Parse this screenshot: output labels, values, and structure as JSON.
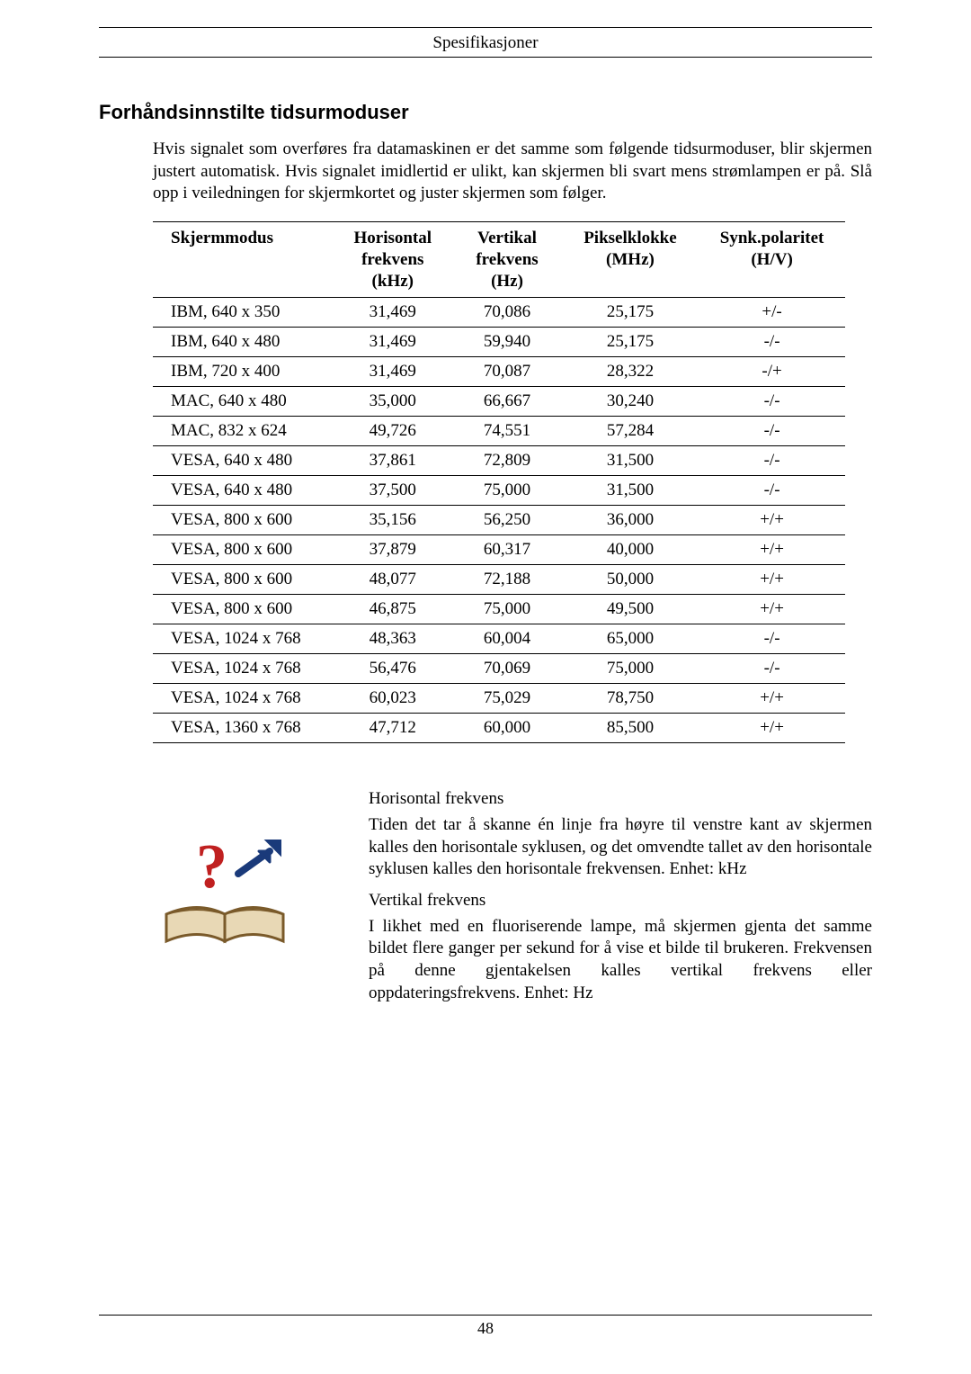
{
  "header": "Spesifikasjoner",
  "section_heading": "Forhåndsinnstilte tidsurmoduser",
  "intro": "Hvis signalet som overføres fra datamaskinen er det samme som følgende tidsurmoduser, blir skjermen justert automatisk. Hvis signalet imidlertid er ulikt, kan skjermen bli svart mens strømlampen er på. Slå opp i veiledningen for skjermkortet og juster skjermen som følger.",
  "table": {
    "columns": [
      "Skjermmodus",
      "Horisontal frekvens (kHz)",
      "Vertikal frekvens (Hz)",
      "Pikselklokke (MHz)",
      "Synk.polaritet (H/V)"
    ],
    "col_html": {
      "c1": "Horisontal<br>frekvens<br>(kHz)",
      "c2": "Vertikal<br>frekvens<br>(Hz)",
      "c3": "Pikselklokke<br>(MHz)",
      "c4": "Synk.polaritet<br>(H/V)"
    },
    "rows": [
      [
        "IBM, 640 x 350",
        "31,469",
        "70,086",
        "25,175",
        "+/-"
      ],
      [
        "IBM, 640 x 480",
        "31,469",
        "59,940",
        "25,175",
        "-/-"
      ],
      [
        "IBM, 720 x 400",
        "31,469",
        "70,087",
        "28,322",
        "-/+"
      ],
      [
        "MAC, 640 x 480",
        "35,000",
        "66,667",
        "30,240",
        "-/-"
      ],
      [
        "MAC, 832 x 624",
        "49,726",
        "74,551",
        "57,284",
        "-/-"
      ],
      [
        "VESA, 640 x 480",
        "37,861",
        "72,809",
        "31,500",
        "-/-"
      ],
      [
        "VESA, 640 x 480",
        "37,500",
        "75,000",
        "31,500",
        "-/-"
      ],
      [
        "VESA, 800 x 600",
        "35,156",
        "56,250",
        "36,000",
        "+/+"
      ],
      [
        "VESA, 800 x 600",
        "37,879",
        "60,317",
        "40,000",
        "+/+"
      ],
      [
        "VESA, 800 x 600",
        "48,077",
        "72,188",
        "50,000",
        "+/+"
      ],
      [
        "VESA, 800 x 600",
        "46,875",
        "75,000",
        "49,500",
        "+/+"
      ],
      [
        "VESA, 1024 x 768",
        "48,363",
        "60,004",
        "65,000",
        "-/-"
      ],
      [
        "VESA, 1024 x 768",
        "56,476",
        "70,069",
        "75,000",
        "-/-"
      ],
      [
        "VESA, 1024 x 768",
        "60,023",
        "75,029",
        "78,750",
        "+/+"
      ],
      [
        "VESA, 1360 x 768",
        "47,712",
        "60,000",
        "85,500",
        "+/+"
      ]
    ]
  },
  "info": {
    "h1": "Horisontal frekvens",
    "p1": "Tiden det tar å skanne én linje fra høyre til venstre kant av skjermen kalles den horisontale syklusen, og det omvendte tallet av den horisontale syklusen kalles den horisontale frekvensen. Enhet: kHz",
    "h2": "Vertikal frekvens",
    "p2": "I likhet med en fluoriserende lampe, må skjermen gjenta det samme bildet flere ganger per sekund for å vise et bilde til brukeren. Frekvensen på denne gjentakelsen kalles vertikal frekvens eller oppdateringsfrekvens. Enhet: Hz"
  },
  "page_number": "48",
  "icon_colors": {
    "book_fill": "#e8d8b5",
    "book_edge": "#7a5a2a",
    "question": "#c02020",
    "arrow": "#1a3a7a"
  }
}
